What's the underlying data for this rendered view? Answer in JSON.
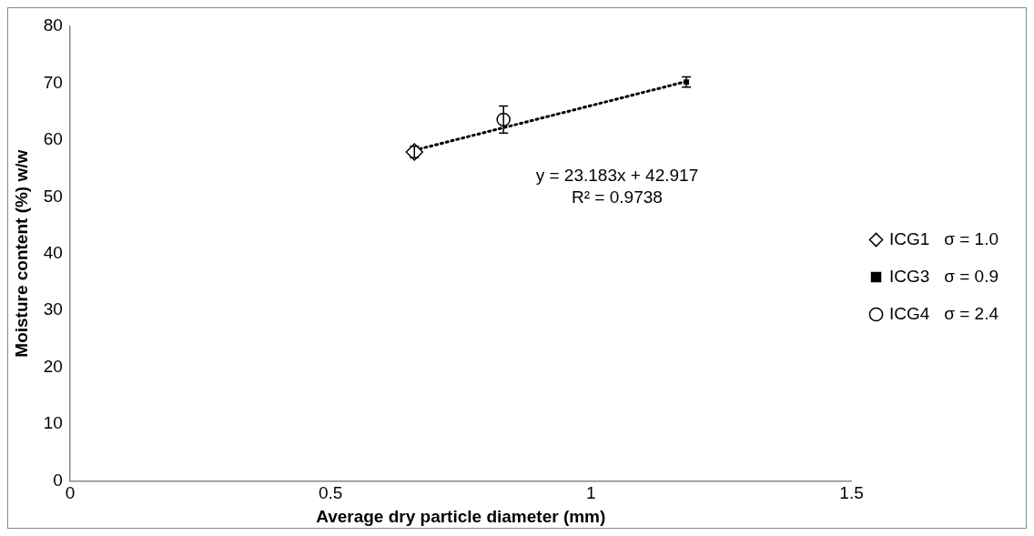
{
  "chart_data": {
    "type": "scatter",
    "xlabel": "Average dry particle diameter (mm)",
    "ylabel": "Moisture content (%) w/w",
    "xlim": [
      0,
      1.5
    ],
    "xticks": [
      0,
      0.5,
      1,
      1.5
    ],
    "ylim": [
      0,
      80
    ],
    "yticks": [
      0,
      10,
      20,
      30,
      40,
      50,
      60,
      70,
      80
    ],
    "grid": false,
    "legend": "right",
    "series": [
      {
        "name": "ICG1   σ = 1.0",
        "color": "#000000",
        "marker": "diamond",
        "x": [
          0.661
        ],
        "values": [
          57.9
        ],
        "errors": [
          1.0
        ]
      },
      {
        "name": "ICG3   σ = 0.9",
        "color": "#000000",
        "marker": "square",
        "x": [
          1.183
        ],
        "values": [
          70.2
        ],
        "errors": [
          0.9
        ]
      },
      {
        "name": "ICG4   σ = 2.4",
        "color": "#000000",
        "marker": "circle",
        "x": [
          0.832
        ],
        "values": [
          63.6
        ],
        "errors": [
          2.4
        ]
      },
      {
        "type": "line",
        "color": "#000000",
        "line_style": "dotted",
        "x": [
          0.661,
          1.183
        ],
        "values": [
          58.2,
          70.3
        ]
      }
    ],
    "annotations": [
      "y = 23.183x + 42.917",
      "R² = 0.9738"
    ]
  }
}
